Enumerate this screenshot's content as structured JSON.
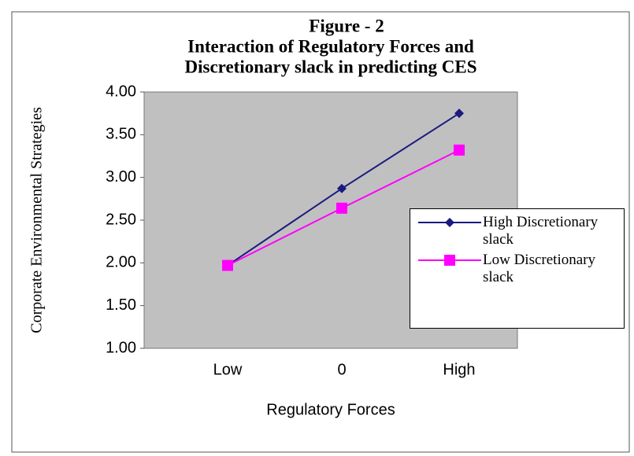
{
  "chart_data": {
    "type": "line",
    "title": [
      "Figure - 2",
      "Interaction of Regulatory Forces and",
      "Discretionary slack in predicting CES"
    ],
    "x_label": "Regulatory Forces",
    "y_label": "Corporate Environmental Strategies",
    "categories": [
      "Low",
      "0",
      "High"
    ],
    "series": [
      {
        "name": "High Discretionary slack",
        "color": "#1a1a80",
        "marker": "diamond",
        "values": [
          1.97,
          2.87,
          3.75
        ]
      },
      {
        "name": "Low Discretionary slack",
        "color": "#ff00ff",
        "marker": "square",
        "values": [
          1.97,
          2.64,
          3.32
        ]
      }
    ],
    "ylim": [
      1,
      4
    ],
    "yticks": [
      {
        "value": 1,
        "label": "1.00"
      },
      {
        "value": 1.5,
        "label": "1.50"
      },
      {
        "value": 2,
        "label": "2.00"
      },
      {
        "value": 2.5,
        "label": "2.50"
      },
      {
        "value": 3,
        "label": "3.00"
      },
      {
        "value": 3.5,
        "label": "3.50"
      },
      {
        "value": 4,
        "label": "4.00"
      }
    ],
    "grid": false,
    "legend": "right"
  }
}
